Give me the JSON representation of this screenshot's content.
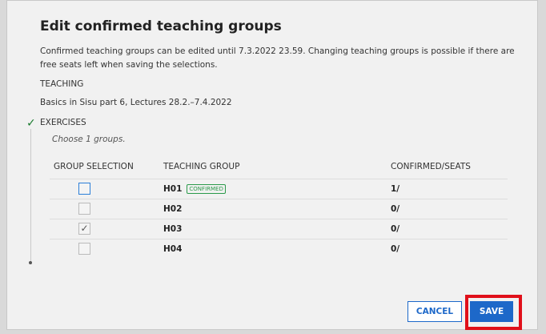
{
  "dialog": {
    "title": "Edit confirmed teaching groups",
    "description": "Confirmed teaching groups can be edited until 7.3.2022 23.59. Changing teaching groups is possible if there are free seats left when saving the selections.",
    "teaching_label": "TEACHING",
    "teaching_value": "Basics in Sisu part 6, Lectures 28.2.–7.4.2022",
    "section": "EXERCISES",
    "section_status_icon": "checkmark-icon",
    "hint": "Choose 1 groups.",
    "columns": [
      "GROUP SELECTION",
      "TEACHING GROUP",
      "CONFIRMED/SEATS"
    ],
    "rows": [
      {
        "group": "H01",
        "badge": "CONFIRMED",
        "seats": "1/",
        "checked": false
      },
      {
        "group": "H02",
        "badge": "",
        "seats": "0/",
        "checked": false
      },
      {
        "group": "H03",
        "badge": "",
        "seats": "0/",
        "checked": true
      },
      {
        "group": "H04",
        "badge": "",
        "seats": "0/",
        "checked": false
      }
    ],
    "cancel": "CANCEL",
    "save": "SAVE"
  },
  "colors": {
    "primary": "#1d68c9",
    "confirmed": "#2a9a4a",
    "highlight": "#e0101a"
  }
}
